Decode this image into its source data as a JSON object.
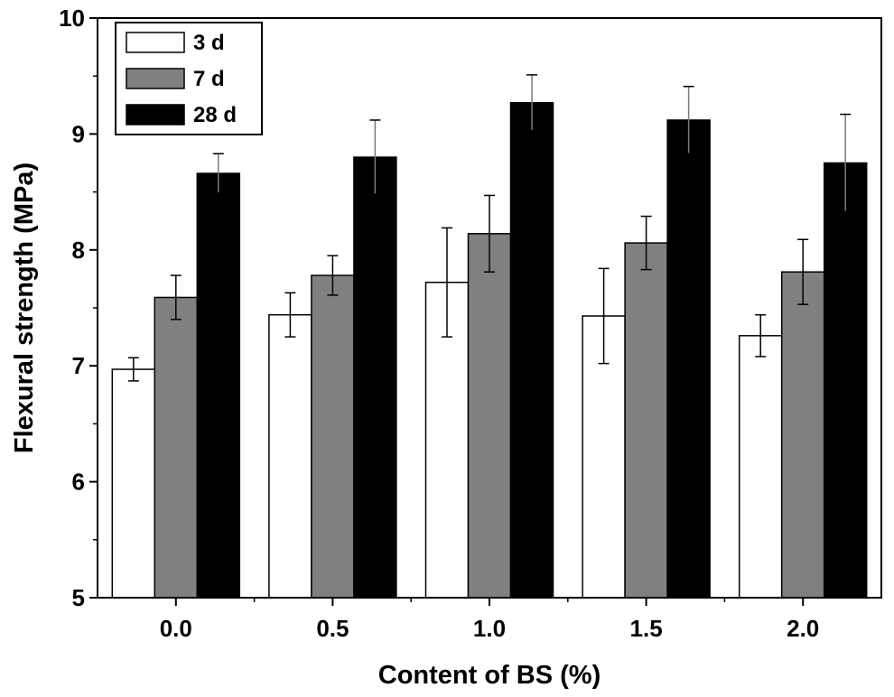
{
  "chart_data": {
    "type": "bar",
    "title": "",
    "xlabel": "Content of BS (%)",
    "ylabel": "Flexural strength (MPa)",
    "ylim": [
      5,
      10
    ],
    "yticks": [
      "5",
      "6",
      "7",
      "8",
      "9",
      "10"
    ],
    "categories": [
      "0.0",
      "0.5",
      "1.0",
      "1.5",
      "2.0"
    ],
    "series": [
      {
        "name": "3 d",
        "color": "#ffffff",
        "values": [
          6.97,
          7.44,
          7.72,
          7.43,
          7.26
        ],
        "errors": [
          0.1,
          0.19,
          0.47,
          0.41,
          0.18
        ]
      },
      {
        "name": "7 d",
        "color": "#808080",
        "values": [
          7.59,
          7.78,
          8.14,
          8.06,
          7.81
        ],
        "errors": [
          0.19,
          0.17,
          0.33,
          0.23,
          0.28
        ]
      },
      {
        "name": "28 d",
        "color": "#000000",
        "values": [
          8.66,
          8.8,
          9.27,
          9.12,
          8.75
        ],
        "errors": [
          0.17,
          0.32,
          0.24,
          0.29,
          0.42
        ]
      }
    ],
    "legend_position": "top-left",
    "grid": false
  }
}
